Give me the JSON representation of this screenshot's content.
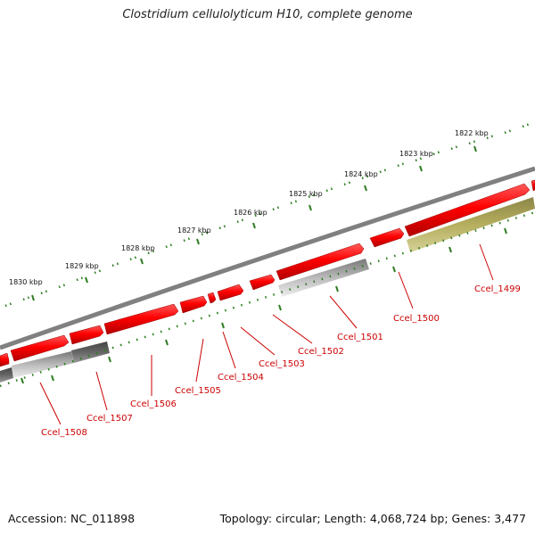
{
  "title": "Clostridium cellulolyticum H10, complete genome",
  "footer": {
    "accession": "Accession: NC_011898",
    "summary": "Topology: circular; Length: 4,068,724 bp; Genes: 3,477"
  },
  "colors": {
    "forward_gene": "#ff0000",
    "rna_gene": "#999999",
    "dark_gene": "#555555",
    "olive_gene": "#b5ae5e",
    "backbone": "#808080",
    "ticks": "#2e7d22",
    "label": "#cc0000"
  },
  "outer_ticks": [
    "1830 kbp",
    "1829 kbp",
    "1828 kbp",
    "1827 kbp",
    "1826 kbp",
    "1825 kbp",
    "1824 kbp",
    "1823 kbp",
    "1822 kbp"
  ],
  "genes": [
    {
      "label": "Ccel_1499"
    },
    {
      "label": "Ccel_1500"
    },
    {
      "label": "Ccel_1501"
    },
    {
      "label": "Ccel_1502"
    },
    {
      "label": "Ccel_1503"
    },
    {
      "label": "Ccel_1504"
    },
    {
      "label": "Ccel_1505"
    },
    {
      "label": "Ccel_1506"
    },
    {
      "label": "Ccel_1507"
    },
    {
      "label": "Ccel_1508"
    }
  ]
}
